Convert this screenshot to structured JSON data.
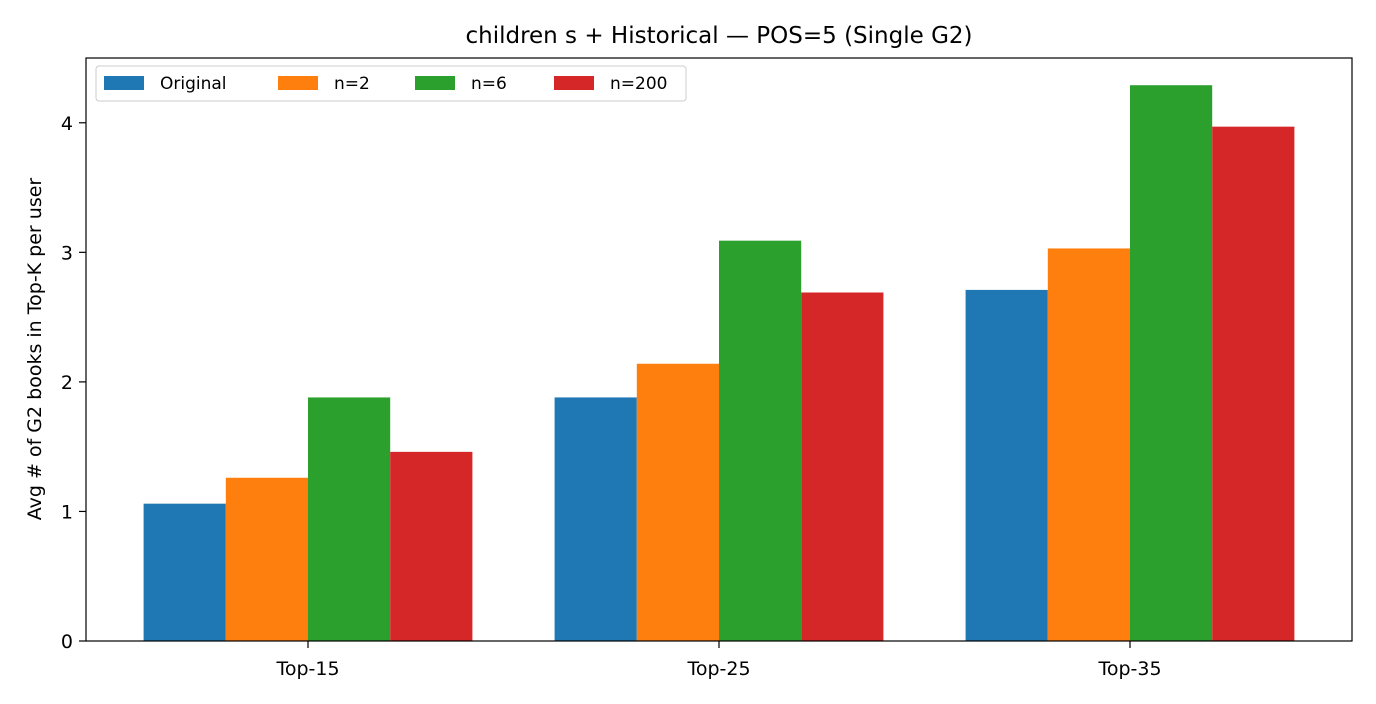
{
  "chart_data": {
    "type": "bar",
    "title": "children s + Historical — POS=5 (Single G2)",
    "xlabel": "",
    "ylabel": "Avg # of G2 books in Top-K per user",
    "categories": [
      "Top-15",
      "Top-25",
      "Top-35"
    ],
    "series": [
      {
        "name": "Original",
        "color": "#1f77b4",
        "values": [
          1.06,
          1.88,
          2.71
        ]
      },
      {
        "name": "n=2",
        "color": "#ff7f0e",
        "values": [
          1.26,
          2.14,
          3.03
        ]
      },
      {
        "name": "n=6",
        "color": "#2ca02c",
        "values": [
          1.88,
          3.09,
          4.29
        ]
      },
      {
        "name": "n=200",
        "color": "#d62728",
        "values": [
          1.46,
          2.69,
          3.97
        ]
      }
    ],
    "ylim": [
      0,
      4.5
    ],
    "yticks": [
      "0",
      "1",
      "2",
      "3",
      "4"
    ],
    "grid": false,
    "legend_position": "top-left"
  }
}
